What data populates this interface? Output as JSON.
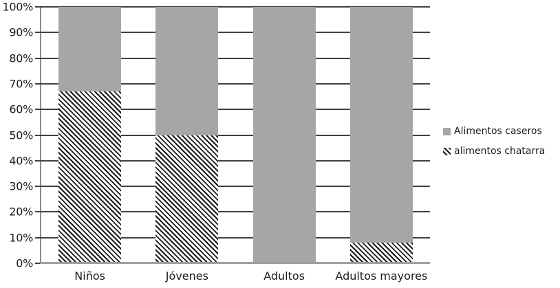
{
  "chart_data": {
    "type": "bar",
    "subtype": "stacked-100-percent",
    "title": "",
    "categories": [
      "Niños",
      "Jóvenes",
      "Adultos",
      "Adultos mayores"
    ],
    "series": [
      {
        "name": "Alimentos caseros",
        "style": "solid",
        "values": [
          33,
          50,
          100,
          92
        ]
      },
      {
        "name": "alimentos chatarra",
        "style": "hatch",
        "values": [
          67,
          50,
          0,
          8
        ]
      }
    ],
    "stack_order_bottom_to_top": [
      "alimentos chatarra",
      "Alimentos caseros"
    ],
    "y_axis": {
      "min": 0,
      "max": 100,
      "step": 10,
      "format": "percent",
      "tick_labels": [
        "0%",
        "10%",
        "20%",
        "30%",
        "40%",
        "50%",
        "60%",
        "70%",
        "80%",
        "90%",
        "100%"
      ]
    },
    "x_axis": {
      "label": ""
    },
    "grid": true,
    "legend": {
      "position": "right",
      "entries": [
        {
          "label": "Alimentos caseros",
          "swatch": "solid"
        },
        {
          "label": "alimentos chatarra",
          "swatch": "hatch"
        }
      ]
    },
    "colors": {
      "bar_gray": "#a6a6a6",
      "hatch_line": "#1a1a1a",
      "hatch_background": "#ffffff",
      "gridline": "#404040",
      "axis_line": "#8c8c8c",
      "baseline": "#9f9f9f",
      "text": "#1a1a1a"
    }
  }
}
